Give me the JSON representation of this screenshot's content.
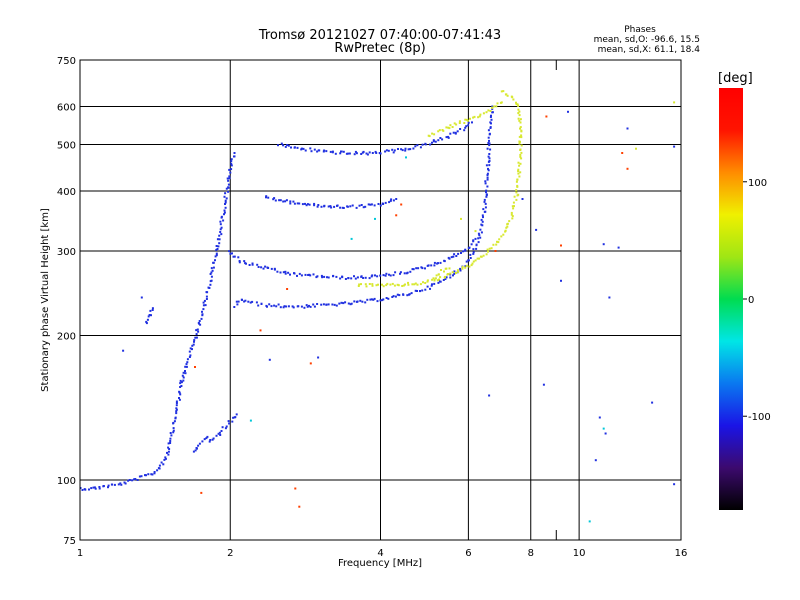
{
  "chart_data": {
    "type": "scatter",
    "title": "Tromsø 20121027 07:40:00-07:41:43",
    "subtitle": "RwPretec (8p)",
    "xlabel": "Frequency [MHz]",
    "ylabel": "Stationary phase Virtual Height [km]",
    "x_scale": "log",
    "y_scale": "log",
    "xlim": [
      1,
      16
    ],
    "ylim": [
      75,
      750
    ],
    "x_ticks": [
      1,
      2,
      4,
      6,
      8,
      10,
      16
    ],
    "x_minor_ticks": [
      9
    ],
    "y_ticks": [
      75,
      100,
      200,
      300,
      400,
      500,
      600,
      750
    ],
    "grid": true,
    "stats": {
      "heading": "Phases",
      "line_o": "mean, sd,O: -96.6, 15.5",
      "line_x": "mean, sd,X:  61.1, 18.4"
    },
    "colorbar": {
      "unit": "[deg]",
      "range": [
        -180,
        180
      ],
      "ticks": [
        100,
        0,
        -100
      ],
      "colormap": [
        "#000000",
        "#3c0a6e",
        "#1a14e6",
        "#0a78f0",
        "#00e6e6",
        "#00dc50",
        "#a0e614",
        "#f0f000",
        "#ff8c00",
        "#ff1400",
        "#ff0000"
      ]
    },
    "series": [
      {
        "mode": "O",
        "color": "#2030e0",
        "traces": [
          {
            "x": [
              1.0,
              1.06,
              1.12,
              1.2,
              1.28,
              1.36,
              1.42,
              1.46,
              1.5,
              1.53,
              1.56,
              1.6
            ],
            "y": [
              96,
              96,
              97,
              98,
              100,
              102,
              104,
              108,
              114,
              125,
              140,
              160
            ]
          },
          {
            "x": [
              1.6,
              1.64,
              1.68,
              1.72,
              1.76,
              1.8,
              1.84,
              1.88,
              1.92,
              1.96,
              2.0,
              2.04
            ],
            "y": [
              160,
              175,
              190,
              205,
              225,
              245,
              270,
              300,
              340,
              390,
              440,
              480
            ]
          },
          {
            "x": [
              2.05,
              2.1,
              2.2,
              2.3,
              2.4,
              2.6,
              2.8,
              3.0,
              3.4,
              3.8,
              4.2,
              4.6,
              5.0,
              5.4,
              5.8,
              6.0,
              6.2,
              6.35,
              6.45,
              6.5,
              6.55,
              6.6,
              6.65,
              6.7
            ],
            "y": [
              230,
              238,
              234,
              232,
              231,
              230,
              230,
              231,
              233,
              236,
              240,
              245,
              252,
              262,
              276,
              288,
              305,
              330,
              360,
              395,
              440,
              490,
              545,
              600
            ]
          },
          {
            "x": [
              2.0,
              2.1,
              2.3,
              2.5,
              2.7,
              3.0,
              3.3,
              3.6,
              4.0,
              4.4,
              4.8,
              5.2,
              5.6,
              6.0,
              6.2
            ],
            "y": [
              300,
              285,
              278,
              272,
              268,
              266,
              264,
              264,
              266,
              270,
              276,
              283,
              292,
              304,
              318
            ]
          },
          {
            "x": [
              2.35,
              2.5,
              2.7,
              2.9,
              3.1,
              3.3,
              3.5,
              3.7,
              3.9,
              4.1,
              4.3
            ],
            "y": [
              390,
              383,
              378,
              374,
              372,
              371,
              371,
              372,
              374,
              378,
              385
            ]
          },
          {
            "x": [
              2.5,
              2.7,
              3.0,
              3.3,
              3.6,
              3.9,
              4.2,
              4.6,
              5.0,
              5.4,
              5.8,
              6.1
            ],
            "y": [
              500,
              492,
              485,
              481,
              479,
              480,
              484,
              491,
              502,
              516,
              535,
              556
            ]
          },
          {
            "x": [
              1.82,
              1.86,
              1.9,
              1.94,
              1.98,
              2.02,
              2.06
            ],
            "y": [
              120,
              122,
              125,
              128,
              131,
              134,
              137
            ]
          },
          {
            "x": [
              1.68,
              1.72,
              1.76,
              1.8
            ],
            "y": [
              115,
              117,
              120,
              123
            ]
          },
          {
            "x": [
              1.36,
              1.38,
              1.4
            ],
            "y": [
              212,
              220,
              228
            ]
          }
        ],
        "points": [
          {
            "x": 1.22,
            "y": 186
          },
          {
            "x": 1.33,
            "y": 240
          },
          {
            "x": 2.4,
            "y": 178
          },
          {
            "x": 3.0,
            "y": 180
          },
          {
            "x": 6.6,
            "y": 150
          },
          {
            "x": 8.5,
            "y": 158
          },
          {
            "x": 11.0,
            "y": 135
          },
          {
            "x": 11.5,
            "y": 240
          },
          {
            "x": 12.0,
            "y": 305
          },
          {
            "x": 12.5,
            "y": 540
          },
          {
            "x": 14.0,
            "y": 145
          },
          {
            "x": 15.5,
            "y": 495
          },
          {
            "x": 15.5,
            "y": 98
          },
          {
            "x": 11.2,
            "y": 310
          },
          {
            "x": 9.5,
            "y": 585
          },
          {
            "x": 9.2,
            "y": 260
          },
          {
            "x": 10.8,
            "y": 110
          },
          {
            "x": 11.3,
            "y": 125
          },
          {
            "x": 8.2,
            "y": 332
          },
          {
            "x": 7.7,
            "y": 385
          }
        ]
      },
      {
        "mode": "X",
        "color": "#d8e830",
        "traces": [
          {
            "x": [
              3.6,
              4.0,
              4.4,
              4.8,
              5.2,
              5.6,
              6.0,
              6.3,
              6.6,
              6.9,
              7.1,
              7.3,
              7.4,
              7.5,
              7.55,
              7.6,
              7.62,
              7.64,
              7.6,
              7.5,
              7.3,
              7.1,
              7.0
            ],
            "y": [
              255,
              254,
              255,
              257,
              262,
              270,
              280,
              290,
              300,
              315,
              330,
              350,
              370,
              395,
              420,
              450,
              480,
              520,
              570,
              610,
              630,
              640,
              645
            ]
          },
          {
            "x": [
              5.0,
              5.4,
              5.8,
              6.2,
              6.6,
              7.0
            ],
            "y": [
              520,
              540,
              555,
              570,
              590,
              612
            ]
          },
          {
            "x": [
              5.1,
              5.2,
              5.3,
              5.5
            ],
            "y": [
              262,
              268,
              272,
              276
            ]
          }
        ],
        "points": [
          {
            "x": 15.5,
            "y": 612
          },
          {
            "x": 13.0,
            "y": 490
          },
          {
            "x": 5.8,
            "y": 350
          },
          {
            "x": 6.2,
            "y": 330
          }
        ]
      },
      {
        "mode": "other",
        "color": "#ff4000",
        "points": [
          {
            "x": 1.7,
            "y": 172
          },
          {
            "x": 2.3,
            "y": 205
          },
          {
            "x": 2.6,
            "y": 250
          },
          {
            "x": 2.9,
            "y": 175
          },
          {
            "x": 2.75,
            "y": 88
          },
          {
            "x": 2.7,
            "y": 96
          },
          {
            "x": 1.75,
            "y": 94
          },
          {
            "x": 8.6,
            "y": 572
          },
          {
            "x": 9.2,
            "y": 308
          },
          {
            "x": 12.5,
            "y": 445
          },
          {
            "x": 12.2,
            "y": 480
          },
          {
            "x": 4.3,
            "y": 356
          },
          {
            "x": 4.4,
            "y": 375
          },
          {
            "x": 6.8,
            "y": 300
          }
        ]
      },
      {
        "mode": "other-cyan",
        "color": "#00c8d8",
        "points": [
          {
            "x": 3.5,
            "y": 318
          },
          {
            "x": 3.9,
            "y": 350
          },
          {
            "x": 10.5,
            "y": 82
          },
          {
            "x": 11.2,
            "y": 128
          },
          {
            "x": 4.5,
            "y": 470
          },
          {
            "x": 2.2,
            "y": 133
          }
        ]
      }
    ]
  }
}
